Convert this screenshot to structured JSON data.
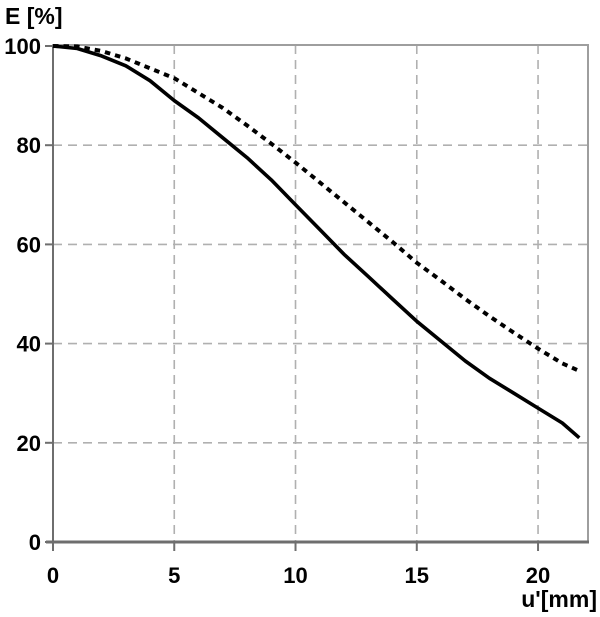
{
  "chart_data": {
    "type": "line",
    "title": "",
    "xlabel": "u'[mm]",
    "ylabel": "E [%]",
    "xlim": [
      0,
      22.06
    ],
    "ylim": [
      0,
      100
    ],
    "x_ticks": [
      0,
      5,
      10,
      15,
      20
    ],
    "y_ticks": [
      0,
      20,
      40,
      60,
      80,
      100
    ],
    "grid": true,
    "legend": "none",
    "series": [
      {
        "name": "solid",
        "line_style": "solid",
        "color": "#000000",
        "x": [
          0,
          1,
          2,
          3,
          4,
          5,
          6,
          7,
          8,
          9,
          10,
          11,
          12,
          13,
          14,
          15,
          16,
          17,
          18,
          19,
          20,
          21,
          21.7
        ],
        "y": [
          100,
          99.5,
          98,
          96,
          93,
          89,
          85.5,
          81.5,
          77.5,
          73,
          68,
          63,
          58,
          53.5,
          49,
          44.5,
          40.5,
          36.5,
          33,
          30,
          27,
          24,
          21
        ]
      },
      {
        "name": "dashed",
        "line_style": "dashed",
        "color": "#000000",
        "x": [
          0,
          1,
          2,
          3,
          4,
          5,
          6,
          7,
          8,
          9,
          10,
          11,
          12,
          13,
          14,
          15,
          16,
          17,
          18,
          19,
          20,
          21,
          21.7
        ],
        "y": [
          100,
          99.9,
          99,
          97.5,
          95.5,
          93.5,
          90.5,
          87.5,
          84,
          80.3,
          76.5,
          72.5,
          68.5,
          64.5,
          60.5,
          56.3,
          52.7,
          49,
          45.5,
          42.2,
          39,
          36,
          34.5
        ]
      }
    ],
    "colors": {
      "curve": "#000000",
      "gridline": "#b0b0b0",
      "axis": "#6e6e6e",
      "border": "#9e9e9e",
      "text": "#000000",
      "background": "#ffffff"
    }
  }
}
